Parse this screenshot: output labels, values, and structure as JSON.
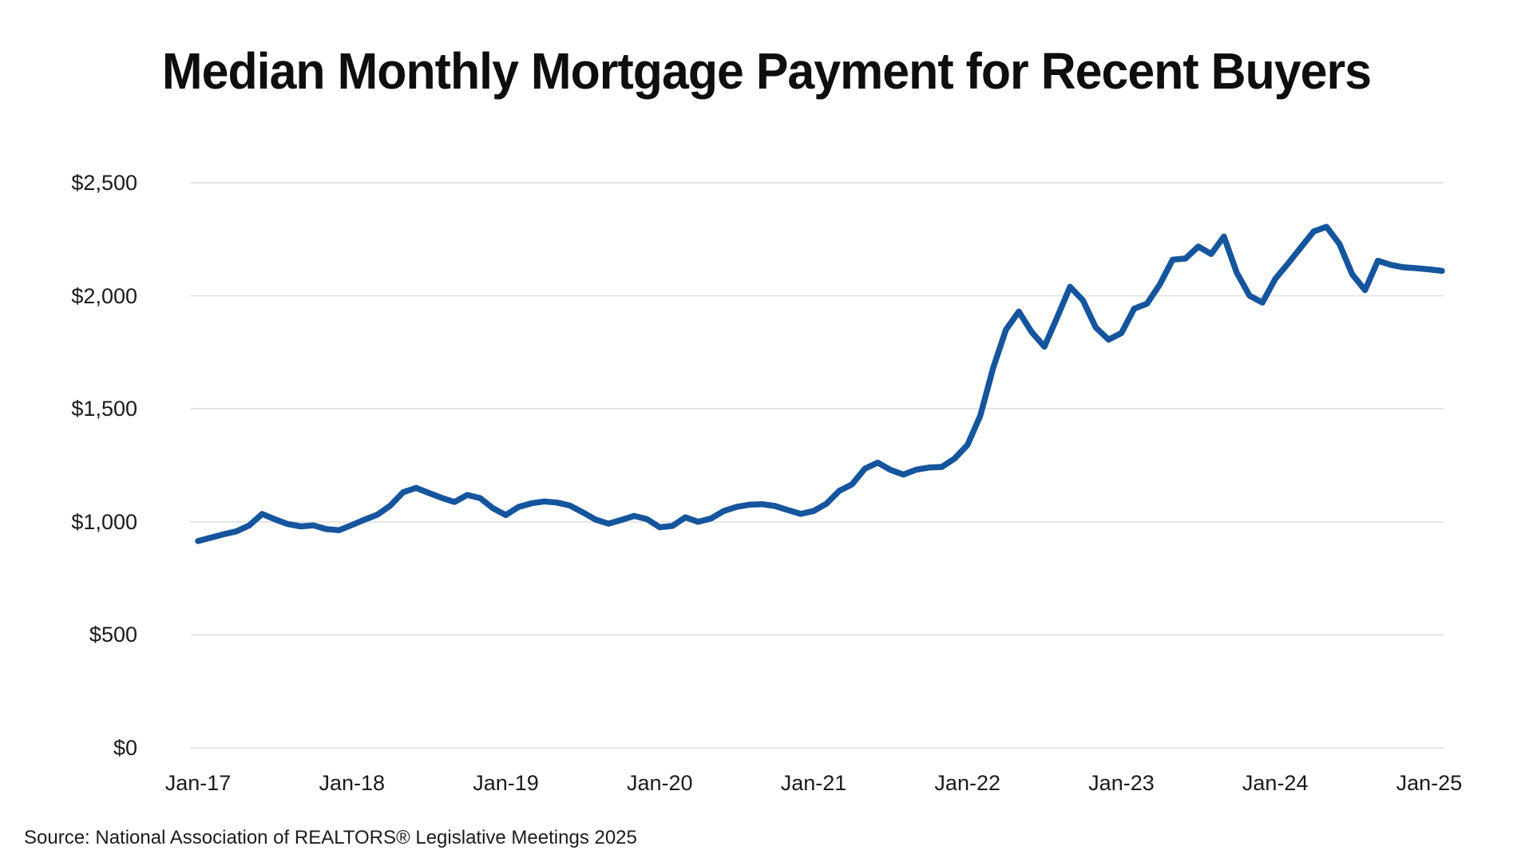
{
  "page": {
    "title": "Median Monthly Mortgage Payment for Recent Buyers",
    "source": "Source: National Association of REALTORS® Legislative Meetings 2025"
  },
  "chart_data": {
    "type": "line",
    "title": "Median Monthly Mortgage Payment for Recent Buyers",
    "series_name": "Median monthly mortgage payment (USD)",
    "line_color": "#15559d",
    "gridline_color": "#e2e2e2",
    "grid": "horizontal-only",
    "legend": "none",
    "xlabel": "",
    "ylabel": "",
    "ylim": [
      0,
      2500
    ],
    "y_ticks": [
      0,
      500,
      1000,
      1500,
      2000,
      2500
    ],
    "y_tick_labels": [
      "$0",
      "$500",
      "$1,000",
      "$1,500",
      "$2,000",
      "$2,500"
    ],
    "x_tick_labels": [
      "Jan-17",
      "Jan-18",
      "Jan-19",
      "Jan-20",
      "Jan-21",
      "Jan-22",
      "Jan-23",
      "Jan-24",
      "Jan-25"
    ],
    "x": [
      "Jan-17",
      "Feb-17",
      "Mar-17",
      "Apr-17",
      "May-17",
      "Jun-17",
      "Jul-17",
      "Aug-17",
      "Sep-17",
      "Oct-17",
      "Nov-17",
      "Dec-17",
      "Jan-18",
      "Feb-18",
      "Mar-18",
      "Apr-18",
      "May-18",
      "Jun-18",
      "Jul-18",
      "Aug-18",
      "Sep-18",
      "Oct-18",
      "Nov-18",
      "Dec-18",
      "Jan-19",
      "Feb-19",
      "Mar-19",
      "Apr-19",
      "May-19",
      "Jun-19",
      "Jul-19",
      "Aug-19",
      "Sep-19",
      "Oct-19",
      "Nov-19",
      "Dec-19",
      "Jan-20",
      "Feb-20",
      "Mar-20",
      "Apr-20",
      "May-20",
      "Jun-20",
      "Jul-20",
      "Aug-20",
      "Sep-20",
      "Oct-20",
      "Nov-20",
      "Dec-20",
      "Jan-21",
      "Feb-21",
      "Mar-21",
      "Apr-21",
      "May-21",
      "Jun-21",
      "Jul-21",
      "Aug-21",
      "Sep-21",
      "Oct-21",
      "Nov-21",
      "Dec-21",
      "Jan-22",
      "Feb-22",
      "Mar-22",
      "Apr-22",
      "May-22",
      "Jun-22",
      "Jul-22",
      "Aug-22",
      "Sep-22",
      "Oct-22",
      "Nov-22",
      "Dec-22",
      "Jan-23",
      "Feb-23",
      "Mar-23",
      "Apr-23",
      "May-23",
      "Jun-23",
      "Jul-23",
      "Aug-23",
      "Sep-23",
      "Oct-23",
      "Nov-23",
      "Dec-23",
      "Jan-24",
      "Feb-24",
      "Mar-24",
      "Apr-24",
      "May-24",
      "Jun-24",
      "Jul-24",
      "Aug-24",
      "Sep-24",
      "Oct-24",
      "Nov-24",
      "Dec-24",
      "Jan-25",
      "Feb-25"
    ],
    "values": [
      915,
      930,
      945,
      958,
      984,
      1035,
      1011,
      990,
      980,
      984,
      968,
      963,
      986,
      1010,
      1032,
      1072,
      1131,
      1150,
      1128,
      1106,
      1088,
      1119,
      1105,
      1060,
      1030,
      1066,
      1082,
      1090,
      1085,
      1072,
      1042,
      1010,
      992,
      1008,
      1026,
      1012,
      976,
      982,
      1020,
      1000,
      1015,
      1048,
      1066,
      1076,
      1078,
      1070,
      1052,
      1035,
      1048,
      1080,
      1137,
      1166,
      1235,
      1262,
      1230,
      1209,
      1231,
      1240,
      1243,
      1280,
      1340,
      1470,
      1680,
      1850,
      1930,
      1840,
      1775,
      1905,
      2040,
      1980,
      1860,
      1806,
      1835,
      1943,
      1965,
      2050,
      2160,
      2165,
      2218,
      2185,
      2262,
      2102,
      2000,
      1970,
      2075,
      2143,
      2214,
      2285,
      2305,
      2230,
      2095,
      2025,
      2155,
      2137,
      2126,
      2122,
      2117,
      2110
    ]
  }
}
